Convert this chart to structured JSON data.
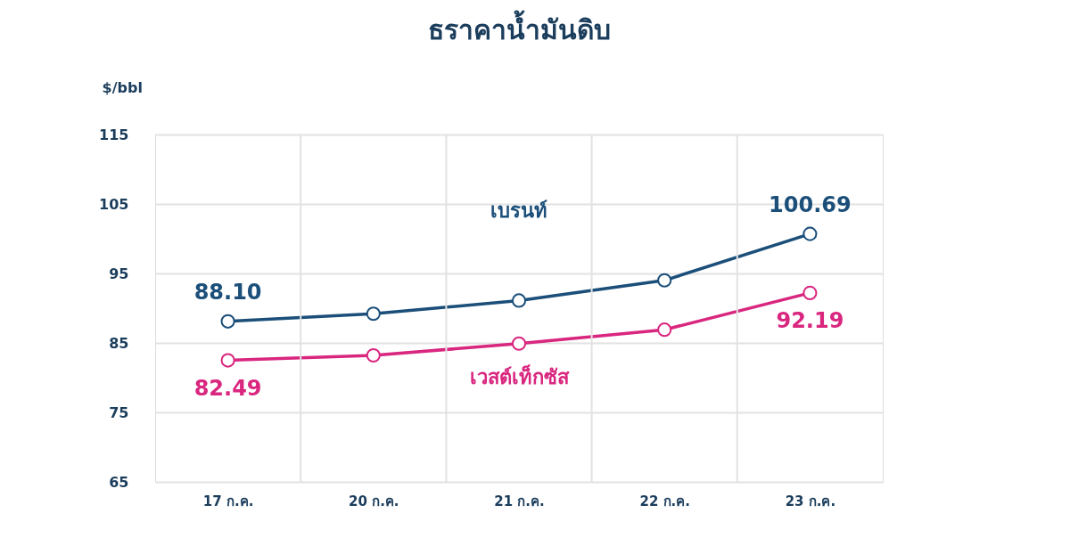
{
  "chart_data": {
    "type": "line",
    "title": "ธราคาน้ำมันดิบ",
    "ylabel": "$/bbl",
    "categories": [
      "17 ก.ค.",
      "20 ก.ค.",
      "21 ก.ค.",
      "22 ก.ค.",
      "23 ก.ค."
    ],
    "series": [
      {
        "name": "เบรนท์",
        "color": "#1b4f7a",
        "values": [
          88.1,
          89.2,
          91.1,
          94.0,
          100.69
        ],
        "value_labels": [
          "88.10",
          null,
          null,
          null,
          "100.69"
        ]
      },
      {
        "name": "เวสต์เท็กซัส",
        "color": "#d9267f",
        "values": [
          82.49,
          83.2,
          84.9,
          86.9,
          92.19
        ],
        "value_labels": [
          "82.49",
          null,
          null,
          null,
          "92.19"
        ]
      }
    ],
    "ylim": [
      65,
      115
    ],
    "yticks": [
      65,
      75,
      85,
      95,
      105,
      115
    ],
    "grid": true,
    "marker": "circle",
    "line_style": "solid",
    "legend": false
  }
}
